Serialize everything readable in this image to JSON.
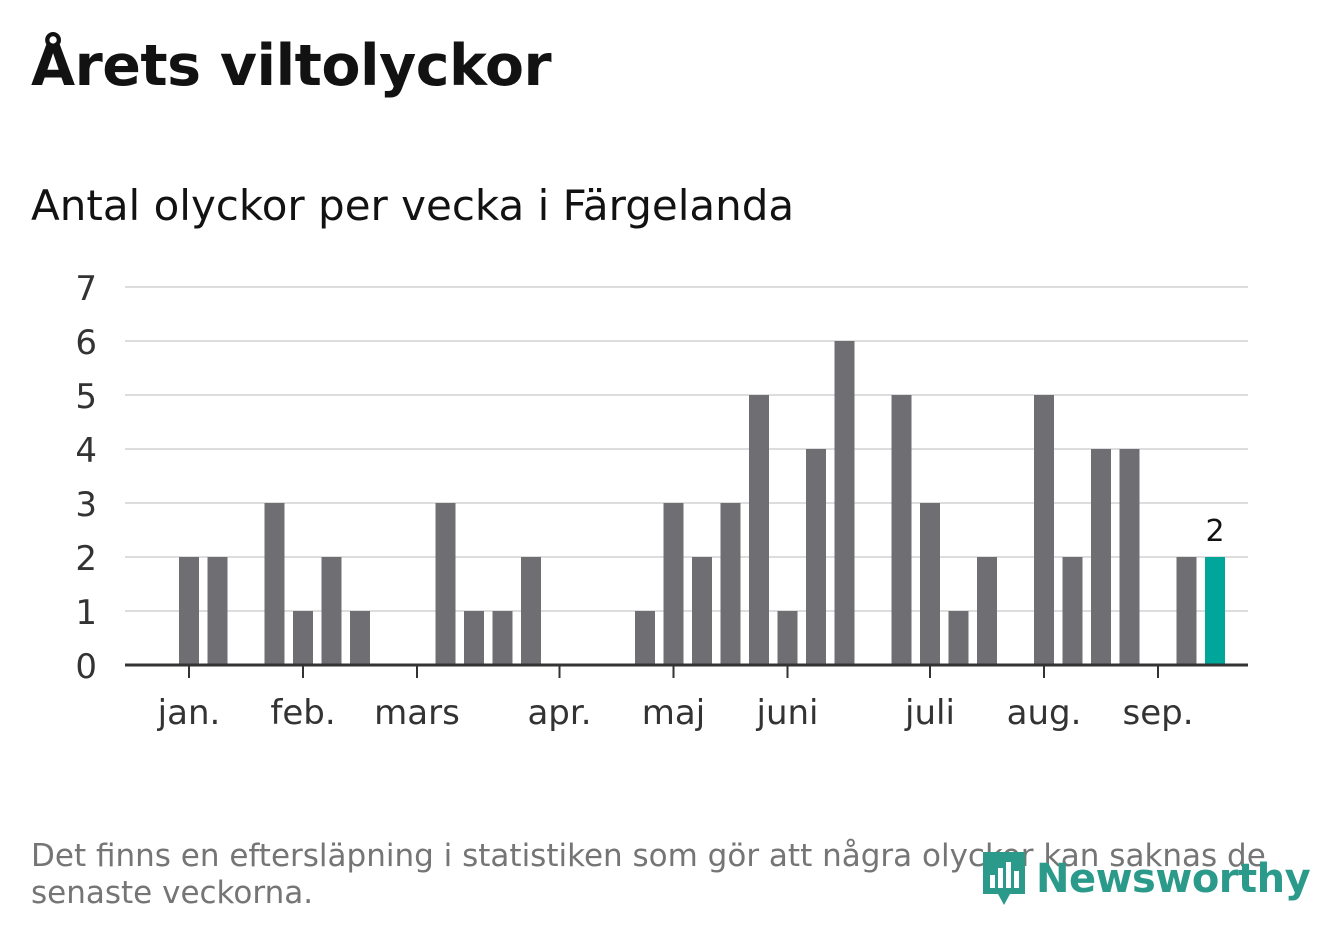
{
  "title": "Årets viltolyckor",
  "subtitle": "Antal olyckor per vecka i Färgelanda",
  "footnote": "Det finns en eftersläpning i statistiken som gör att några olyckor kan saknas de senaste veckorna.",
  "logo": {
    "text": "Newsworthy",
    "icon": "bar-chart-icon"
  },
  "colors": {
    "bar": "#6f6e73",
    "highlight": "#00a699",
    "grid": "#dddddd",
    "axis": "#333333",
    "brand": "#2b9a8b"
  },
  "chart_data": {
    "type": "bar",
    "x_unit": "week",
    "weeks": [
      1,
      2,
      3,
      4,
      5,
      6,
      7,
      8,
      9,
      10,
      11,
      12,
      13,
      14,
      15,
      16,
      17,
      18,
      19,
      20,
      21,
      22,
      23,
      24,
      25,
      26,
      27,
      28,
      29,
      30,
      31,
      32,
      33,
      34,
      35,
      36,
      37,
      38,
      39
    ],
    "values": [
      0,
      0,
      2,
      2,
      0,
      3,
      1,
      2,
      1,
      0,
      0,
      3,
      1,
      1,
      2,
      0,
      0,
      0,
      1,
      3,
      2,
      3,
      5,
      1,
      4,
      6,
      0,
      5,
      3,
      1,
      2,
      0,
      5,
      2,
      4,
      4,
      0,
      2,
      2
    ],
    "month_ticks": [
      {
        "label": "jan.",
        "week": 3
      },
      {
        "label": "feb.",
        "week": 7
      },
      {
        "label": "mars",
        "week": 11
      },
      {
        "label": "apr.",
        "week": 16
      },
      {
        "label": "maj",
        "week": 20
      },
      {
        "label": "juni",
        "week": 24
      },
      {
        "label": "juli",
        "week": 29
      },
      {
        "label": "aug.",
        "week": 33
      },
      {
        "label": "sep.",
        "week": 37
      }
    ],
    "highlight": {
      "week": 39,
      "label": "2"
    },
    "yticks": [
      0,
      1,
      2,
      3,
      4,
      5,
      6,
      7
    ],
    "ylim": [
      0,
      7
    ],
    "grid": true
  }
}
